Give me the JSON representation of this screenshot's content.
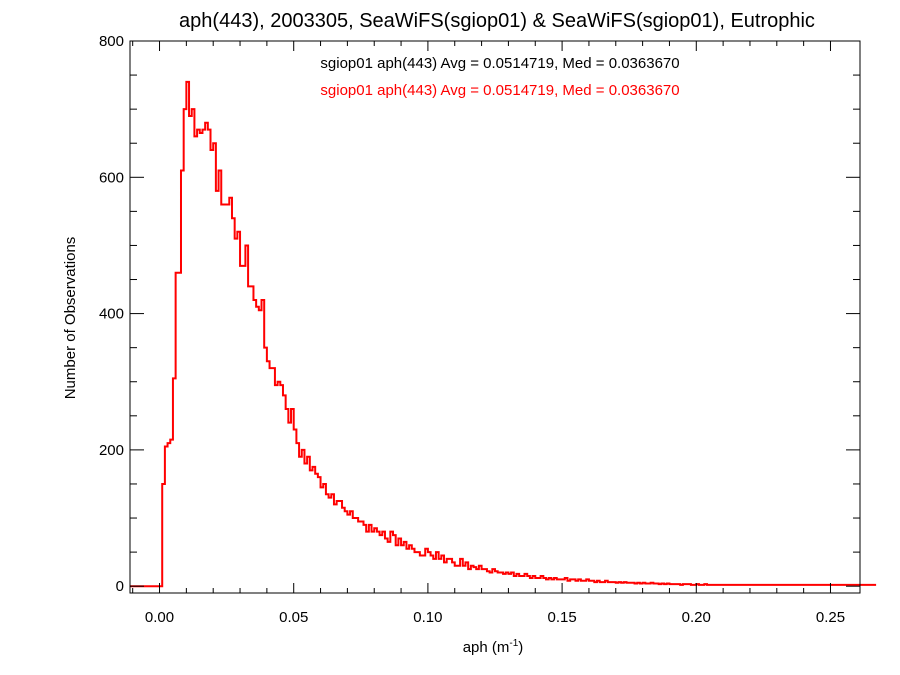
{
  "chart_data": {
    "type": "histogram",
    "title": "aph(443), 2003305, SeaWiFS(sgiop01) & SeaWiFS(sgiop01), Eutrophic",
    "xlabel": "aph (m",
    "xlabel_sup": "-1",
    "xlabel_close": ")",
    "ylabel": "Number of Observations",
    "xlim": [
      -0.011,
      0.261
    ],
    "ylim": [
      -10,
      800
    ],
    "xticks": [
      0.0,
      0.05,
      0.1,
      0.15,
      0.2,
      0.25
    ],
    "xtick_labels": [
      "0.00",
      "0.05",
      "0.10",
      "0.15",
      "0.20",
      "0.25"
    ],
    "yticks": [
      0,
      200,
      400,
      600,
      800
    ],
    "ytick_labels": [
      "0",
      "200",
      "400",
      "600",
      "800"
    ],
    "bin_width": 0.001,
    "bin_start": -0.011,
    "counts": [
      0,
      0,
      0,
      0,
      0,
      0,
      0,
      0,
      0,
      0,
      0,
      0,
      150,
      205,
      210,
      215,
      305,
      460,
      460,
      610,
      700,
      740,
      690,
      700,
      660,
      670,
      665,
      670,
      680,
      670,
      640,
      650,
      580,
      610,
      560,
      560,
      560,
      570,
      540,
      510,
      520,
      470,
      470,
      500,
      440,
      440,
      420,
      410,
      405,
      420,
      350,
      330,
      320,
      320,
      295,
      300,
      295,
      280,
      260,
      240,
      260,
      230,
      210,
      190,
      200,
      180,
      190,
      170,
      175,
      165,
      160,
      145,
      150,
      135,
      130,
      135,
      120,
      125,
      125,
      115,
      110,
      105,
      110,
      100,
      100,
      95,
      95,
      90,
      80,
      90,
      80,
      85,
      80,
      75,
      80,
      70,
      65,
      80,
      75,
      60,
      70,
      60,
      65,
      55,
      60,
      55,
      50,
      50,
      45,
      45,
      55,
      50,
      45,
      40,
      50,
      40,
      45,
      35,
      40,
      40,
      35,
      30,
      30,
      40,
      30,
      35,
      25,
      30,
      28,
      25,
      30,
      25,
      25,
      22,
      20,
      25,
      22,
      20,
      20,
      18,
      20,
      18,
      20,
      15,
      18,
      15,
      15,
      18,
      15,
      12,
      15,
      12,
      12,
      15,
      12,
      10,
      12,
      10,
      12,
      10,
      10,
      10,
      12,
      8,
      10,
      10,
      8,
      10,
      8,
      8,
      10,
      8,
      8,
      6,
      8,
      6,
      6,
      8,
      6,
      6,
      6,
      5,
      6,
      5,
      6,
      5,
      5,
      5,
      4,
      5,
      4,
      5,
      4,
      4,
      5,
      4,
      4,
      3,
      4,
      3,
      4,
      3,
      3,
      3,
      3,
      2,
      3,
      3,
      3,
      2,
      2,
      3,
      2,
      2,
      3,
      2,
      2,
      2,
      2,
      2,
      2,
      2,
      2,
      2,
      2,
      2,
      2,
      2,
      2,
      2,
      2,
      2,
      2,
      2,
      2,
      2,
      2,
      2,
      2,
      2,
      2,
      2,
      2,
      2,
      2,
      2,
      2,
      2,
      2,
      2,
      2,
      2,
      2,
      2,
      2,
      2,
      2,
      2,
      2,
      2,
      2,
      2,
      2,
      2,
      2,
      2,
      2,
      2,
      2,
      2,
      2,
      2,
      2,
      2,
      2,
      2,
      2,
      2
    ],
    "series": [
      {
        "name": "sgiop01 aph(443) Avg = 0.0514719, Med = 0.0363670",
        "color": "#000000"
      },
      {
        "name": "sgiop01 aph(443) Avg = 0.0514719, Med = 0.0363670",
        "color": "#ff0000"
      }
    ],
    "line_color": "#ff0000",
    "grid": false,
    "legend_placement": "top-center"
  }
}
